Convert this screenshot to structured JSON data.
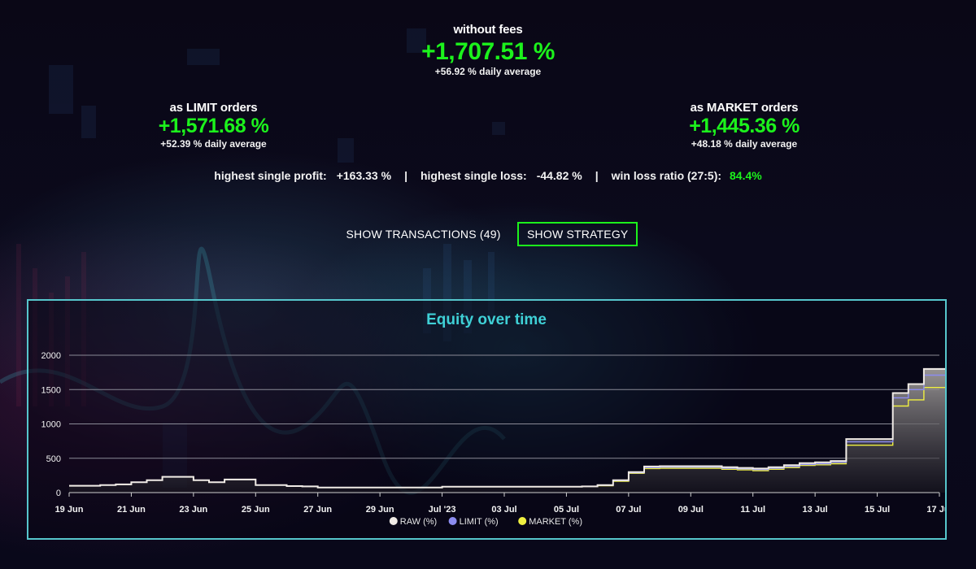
{
  "summary": {
    "without_fees": {
      "label": "without fees",
      "value": "+1,707.51 %",
      "avg": "+56.92 % daily average"
    },
    "limit": {
      "label": "as LIMIT orders",
      "value": "+1,571.68 %",
      "avg": "+52.39 % daily average"
    },
    "market": {
      "label": "as MARKET orders",
      "value": "+1,445.36 %",
      "avg": "+48.18 % daily average"
    }
  },
  "stats": {
    "profit_label": "highest single profit:",
    "profit_value": "+163.33 %",
    "sep1": "|",
    "loss_label": "highest single loss:",
    "loss_value": "-44.82 %",
    "sep2": "|",
    "ratio_label": "win loss ratio (27:5):",
    "ratio_value": "84.4%"
  },
  "buttons": {
    "transactions": "SHOW TRANSACTIONS (49)",
    "strategy": "SHOW STRATEGY"
  },
  "colors": {
    "accent": "#1cf21c",
    "frame": "#56c6cc",
    "title": "#3fd0d6"
  },
  "chart_data": {
    "type": "area",
    "title": "Equity over time",
    "xlabel": "",
    "ylabel": "",
    "ylim": [
      0,
      2000
    ],
    "yticks": [
      0,
      500,
      1000,
      1500,
      2000
    ],
    "xlim": [
      "2023-06-19",
      "2023-07-17"
    ],
    "xticks": [
      {
        "date": "2023-06-19",
        "label": "19 Jun"
      },
      {
        "date": "2023-06-21",
        "label": "21 Jun"
      },
      {
        "date": "2023-06-23",
        "label": "23 Jun"
      },
      {
        "date": "2023-06-25",
        "label": "25 Jun"
      },
      {
        "date": "2023-06-27",
        "label": "27 Jun"
      },
      {
        "date": "2023-06-29",
        "label": "29 Jun"
      },
      {
        "date": "2023-07-01",
        "label": "Jul '23"
      },
      {
        "date": "2023-07-03",
        "label": "03 Jul"
      },
      {
        "date": "2023-07-05",
        "label": "05 Jul"
      },
      {
        "date": "2023-07-07",
        "label": "07 Jul"
      },
      {
        "date": "2023-07-09",
        "label": "09 Jul"
      },
      {
        "date": "2023-07-11",
        "label": "11 Jul"
      },
      {
        "date": "2023-07-13",
        "label": "13 Jul"
      },
      {
        "date": "2023-07-15",
        "label": "15 Jul"
      },
      {
        "date": "2023-07-17",
        "label": "17 Jul"
      }
    ],
    "x": [
      "2023-06-19",
      "2023-06-19 12:00",
      "2023-06-20",
      "2023-06-20 12:00",
      "2023-06-21",
      "2023-06-21 12:00",
      "2023-06-22",
      "2023-06-22 12:00",
      "2023-06-23",
      "2023-06-23 12:00",
      "2023-06-24",
      "2023-06-24 12:00",
      "2023-06-25",
      "2023-06-25 12:00",
      "2023-06-26",
      "2023-06-26 12:00",
      "2023-06-27",
      "2023-06-27 12:00",
      "2023-06-28",
      "2023-06-28 12:00",
      "2023-06-29",
      "2023-06-29 12:00",
      "2023-06-30",
      "2023-06-30 12:00",
      "2023-07-01",
      "2023-07-01 12:00",
      "2023-07-02",
      "2023-07-02 12:00",
      "2023-07-03",
      "2023-07-03 12:00",
      "2023-07-04",
      "2023-07-04 12:00",
      "2023-07-05",
      "2023-07-05 12:00",
      "2023-07-06",
      "2023-07-06 12:00",
      "2023-07-07",
      "2023-07-07 12:00",
      "2023-07-08",
      "2023-07-08 12:00",
      "2023-07-09",
      "2023-07-09 12:00",
      "2023-07-10",
      "2023-07-10 12:00",
      "2023-07-11",
      "2023-07-11 12:00",
      "2023-07-12",
      "2023-07-12 12:00",
      "2023-07-13",
      "2023-07-13 12:00",
      "2023-07-14",
      "2023-07-14 12:00",
      "2023-07-15",
      "2023-07-15 12:00",
      "2023-07-16",
      "2023-07-16 12:00",
      "2023-07-17",
      "2023-07-17 12:00"
    ],
    "series": [
      {
        "name": "RAW (%)",
        "color": "#f0ebe6",
        "values": [
          100,
          100,
          110,
          120,
          150,
          180,
          230,
          230,
          180,
          150,
          190,
          190,
          110,
          110,
          95,
          90,
          75,
          75,
          75,
          75,
          75,
          75,
          75,
          75,
          85,
          85,
          85,
          85,
          85,
          85,
          85,
          85,
          85,
          90,
          110,
          180,
          300,
          380,
          385,
          385,
          385,
          385,
          370,
          360,
          350,
          370,
          400,
          430,
          440,
          460,
          780,
          780,
          780,
          1450,
          1580,
          1800,
          1800,
          1800
        ]
      },
      {
        "name": "LIMIT (%)",
        "color": "#8c8cf0",
        "values": [
          100,
          100,
          110,
          120,
          150,
          180,
          230,
          230,
          180,
          150,
          190,
          190,
          110,
          110,
          95,
          90,
          75,
          75,
          75,
          75,
          75,
          75,
          75,
          75,
          85,
          85,
          85,
          85,
          85,
          85,
          85,
          85,
          85,
          90,
          105,
          175,
          290,
          365,
          370,
          370,
          370,
          370,
          355,
          345,
          335,
          355,
          380,
          410,
          420,
          440,
          740,
          740,
          740,
          1380,
          1500,
          1710,
          1710,
          1710
        ]
      },
      {
        "name": "MARKET (%)",
        "color": "#f0f040",
        "values": [
          100,
          100,
          110,
          120,
          150,
          180,
          230,
          230,
          180,
          150,
          190,
          190,
          110,
          110,
          95,
          90,
          75,
          75,
          75,
          75,
          75,
          75,
          75,
          75,
          85,
          85,
          85,
          85,
          85,
          85,
          85,
          85,
          85,
          90,
          100,
          165,
          280,
          350,
          355,
          355,
          355,
          355,
          340,
          330,
          320,
          340,
          365,
          395,
          405,
          420,
          690,
          690,
          690,
          1260,
          1350,
          1530,
          1530,
          1530
        ]
      }
    ],
    "legend": "bottom-center",
    "grid": true
  }
}
